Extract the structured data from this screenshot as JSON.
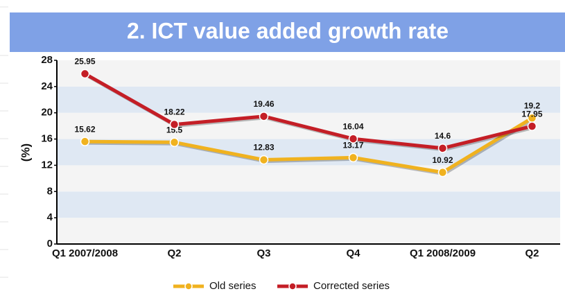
{
  "chart_data": {
    "type": "line",
    "title": "2. ICT value added growth rate",
    "y_label": "(%)",
    "categories": [
      "Q1 2007/2008",
      "Q2",
      "Q3",
      "Q4",
      "Q1 2008/2009",
      "Q2"
    ],
    "series": [
      {
        "name": "Old series",
        "color": "#f0b21f",
        "values": [
          15.62,
          15.5,
          12.83,
          13.17,
          10.92,
          19.2
        ]
      },
      {
        "name": "Corrected series",
        "color": "#c41e26",
        "values": [
          25.95,
          18.22,
          19.46,
          16.04,
          14.6,
          17.95
        ]
      }
    ],
    "ylim": [
      0,
      28
    ],
    "yticks": [
      0,
      4,
      8,
      12,
      16,
      20,
      24,
      28
    ],
    "grid": true,
    "legend": "bottom"
  }
}
